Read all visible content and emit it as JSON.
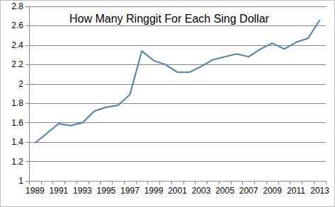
{
  "chart_data": {
    "type": "line",
    "title": "How Many Ringgit For Each Sing Dollar",
    "categories": [
      "1989",
      null,
      "1991",
      null,
      "1993",
      null,
      "1995",
      null,
      "1997",
      null,
      "1999",
      null,
      "2001",
      null,
      "2003",
      null,
      "2005",
      null,
      "2007",
      null,
      "2009",
      null,
      "2011",
      null,
      "2013"
    ],
    "values": [
      1.39,
      1.49,
      1.59,
      1.57,
      1.6,
      1.72,
      1.76,
      1.78,
      1.89,
      2.34,
      2.24,
      2.2,
      2.12,
      2.12,
      2.18,
      2.25,
      2.28,
      2.31,
      2.28,
      2.36,
      2.42,
      2.36,
      2.43,
      2.47,
      2.66
    ],
    "color": "#4a7ebb",
    "ylim": [
      1,
      2.8
    ],
    "yticks": [
      1,
      1.2,
      1.4,
      1.6,
      1.8,
      2,
      2.2,
      2.4,
      2.6,
      2.8
    ],
    "grid": true
  }
}
